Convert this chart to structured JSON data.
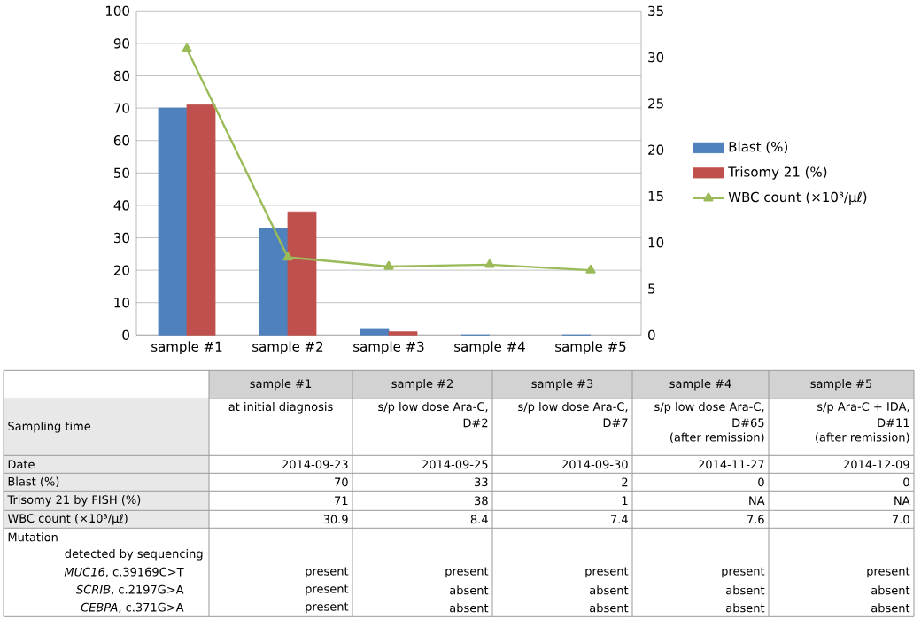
{
  "chart_data": {
    "type": "bar",
    "categories": [
      "sample #1",
      "sample #2",
      "sample #3",
      "sample #4",
      "sample #5"
    ],
    "series": [
      {
        "name": "Blast (%)",
        "color": "#4f81bd",
        "values": [
          70,
          33,
          2,
          0,
          0
        ]
      },
      {
        "name": "Trisomy 21 (%)",
        "color": "#c0504d",
        "values": [
          71,
          38,
          1,
          null,
          null
        ]
      },
      {
        "name": "WBC count (×10³/μℓ)",
        "type": "line",
        "axis": "y2",
        "marker": "triangle",
        "color": "#9bbb59",
        "values": [
          30.9,
          8.4,
          7.4,
          7.6,
          7.0
        ]
      }
    ],
    "ylim": [
      0,
      100
    ],
    "yticks": [
      0,
      10,
      20,
      30,
      40,
      50,
      60,
      70,
      80,
      90,
      100
    ],
    "y2lim": [
      0,
      35
    ],
    "y2ticks": [
      0,
      5,
      10,
      15,
      20,
      25,
      30,
      35
    ],
    "grid": "y",
    "legend": "right",
    "annotations": [
      "Sampling time",
      "at initial diagnosis",
      "s/p low dose Ara-C,",
      "D#2",
      "s/p low dose Ara-C,",
      "D#7",
      "s/p low dose Ara-C,",
      "D#65",
      "(after remission)",
      "s/p Ara-C + IDA,",
      "D#11",
      "(after remission)",
      "Date",
      "2014-09-23",
      "2014-09-25",
      "2014-09-30",
      "2014-11-27",
      "2014-12-09",
      "Blast (%)",
      "Trisomy 21 by FISH (%)",
      "WBC count (×10³/μℓ)",
      "Mutation",
      "detected by sequencing",
      "*MUC16*, c.39169C>T",
      "*SCRIB*, c.2197G>A",
      "*CEBPA*, c.371G>A",
      "present",
      "present",
      "present",
      "present",
      "present",
      "present",
      "absent",
      "absent",
      "absent",
      "absent",
      "present",
      "absent",
      "absent",
      "absent",
      "absent",
      "70",
      "33",
      "2",
      "0",
      "0",
      "71",
      "38",
      "1",
      "NA",
      "NA",
      "30.9",
      "8.4",
      "7.4",
      "7.6",
      "7.0"
    ]
  }
}
